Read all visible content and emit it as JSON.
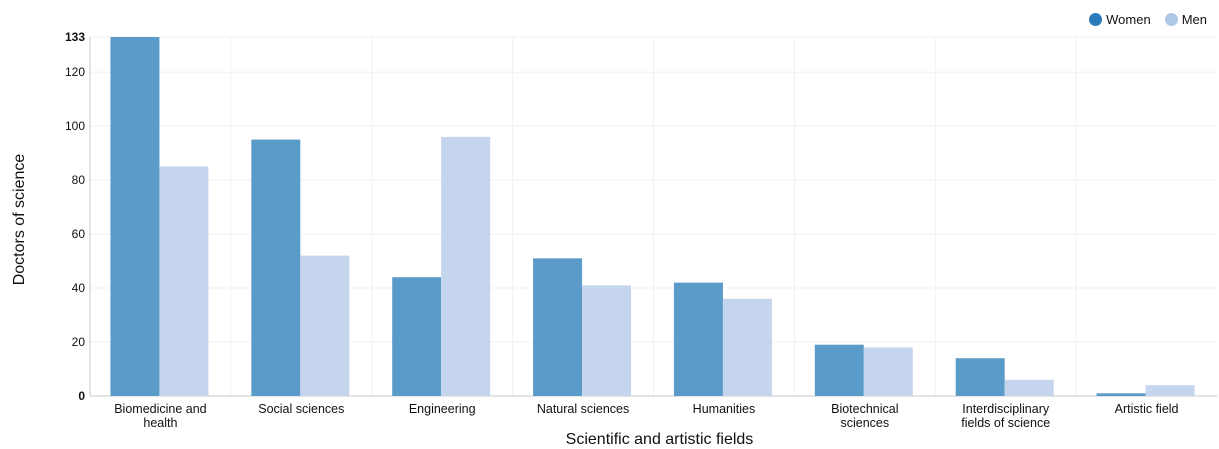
{
  "chart_data": {
    "type": "bar",
    "categories": [
      [
        "Biomedicine and",
        "health"
      ],
      [
        "Social sciences"
      ],
      [
        "Engineering"
      ],
      [
        "Natural sciences"
      ],
      [
        "Humanities"
      ],
      [
        "Biotechnical",
        "sciences"
      ],
      [
        "Interdisciplinary",
        "fields of science"
      ],
      [
        "Artistic field"
      ]
    ],
    "series": [
      {
        "name": "Women",
        "color": "#5b9bc9",
        "legend_color": "#2b7bbb",
        "values": [
          133,
          95,
          44,
          51,
          42,
          19,
          14,
          1
        ]
      },
      {
        "name": "Men",
        "color": "#c4d5ed",
        "legend_color": "#aec7e8",
        "values": [
          85,
          52,
          96,
          41,
          36,
          18,
          6,
          4
        ]
      }
    ],
    "xlabel": "Scientific and artistic fields",
    "ylabel": "Doctors of science",
    "ylim": [
      0,
      133
    ],
    "yticks": [
      0,
      20,
      40,
      60,
      80,
      100,
      120,
      133
    ],
    "bold_ticks": [
      0,
      133
    ],
    "grid": true,
    "legend_position": "top-right"
  }
}
